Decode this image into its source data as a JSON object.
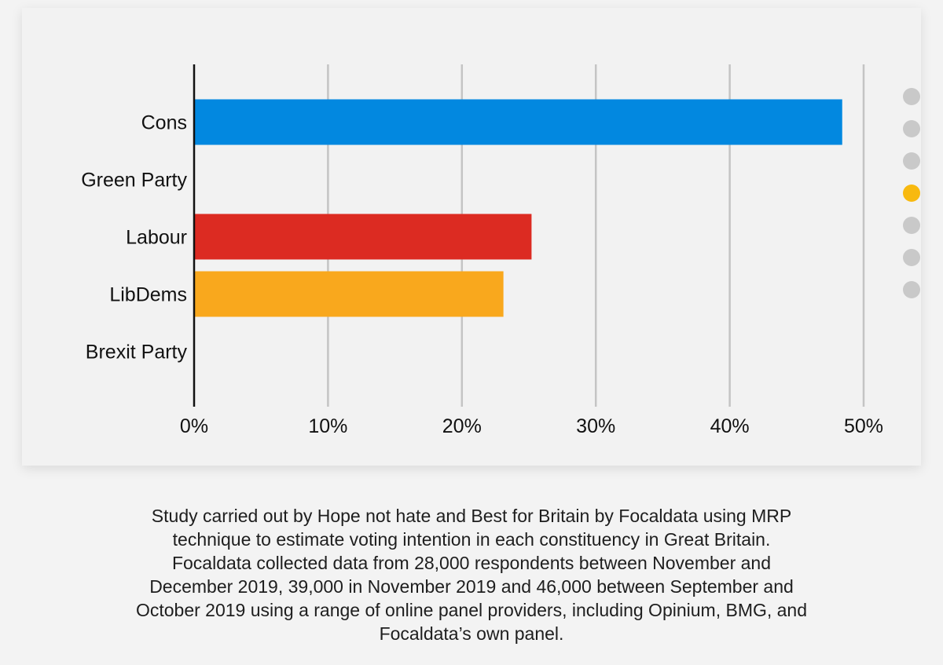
{
  "chart_data": {
    "type": "bar",
    "orientation": "horizontal",
    "categories": [
      "Cons",
      "Green Party",
      "Labour",
      "LibDems",
      "Brexit Party"
    ],
    "values": [
      48.4,
      0,
      25.2,
      23.1,
      0
    ],
    "colors": [
      "#0288e0",
      "#3fa535",
      "#dc2b22",
      "#f9a81d",
      "#12b6cf"
    ],
    "xlim": [
      0,
      50
    ],
    "xticks": [
      0,
      10,
      20,
      30,
      40,
      50
    ],
    "xtick_labels": [
      "0%",
      "10%",
      "20%",
      "30%",
      "40%",
      "50%"
    ],
    "grid": true
  },
  "pager": {
    "count": 7,
    "active_index": 3,
    "active_color": "#f8b90f",
    "inactive_color": "#c9c9c9"
  },
  "caption": {
    "lines": [
      "Study carried out by Hope not hate and Best for Britain by Focaldata using MRP",
      "technique to estimate voting intention in each constituency in Great Britain.",
      "Focaldata collected data from 28,000 respondents between November and",
      "December 2019, 39,000 in November 2019 and 46,000 between September and",
      "October 2019 using a range of online panel providers, including Opinium, BMG, and",
      "Focaldata’s own panel."
    ]
  }
}
